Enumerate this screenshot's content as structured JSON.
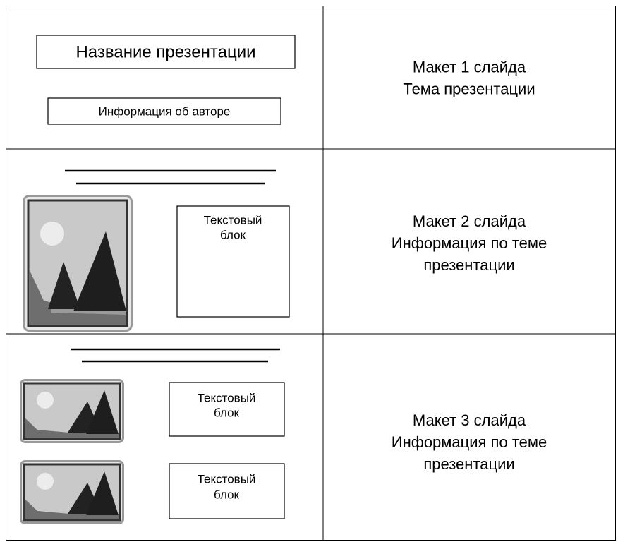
{
  "rows": [
    {
      "layout": {
        "title": "Название презентации",
        "subtitle": "Информация об авторе"
      },
      "description": [
        "Макет 1 слайда",
        "Тема презентации"
      ]
    },
    {
      "layout": {
        "text_blocks": [
          [
            "Текстовый",
            "блок"
          ]
        ]
      },
      "description": [
        "Макет 2 слайда",
        "Информация по теме",
        "презентации"
      ]
    },
    {
      "layout": {
        "text_blocks": [
          [
            "Текстовый",
            "блок"
          ],
          [
            "Текстовый",
            "блок"
          ]
        ]
      },
      "description": [
        "Макет 3 слайда",
        "Информация по теме",
        "презентации"
      ]
    }
  ]
}
